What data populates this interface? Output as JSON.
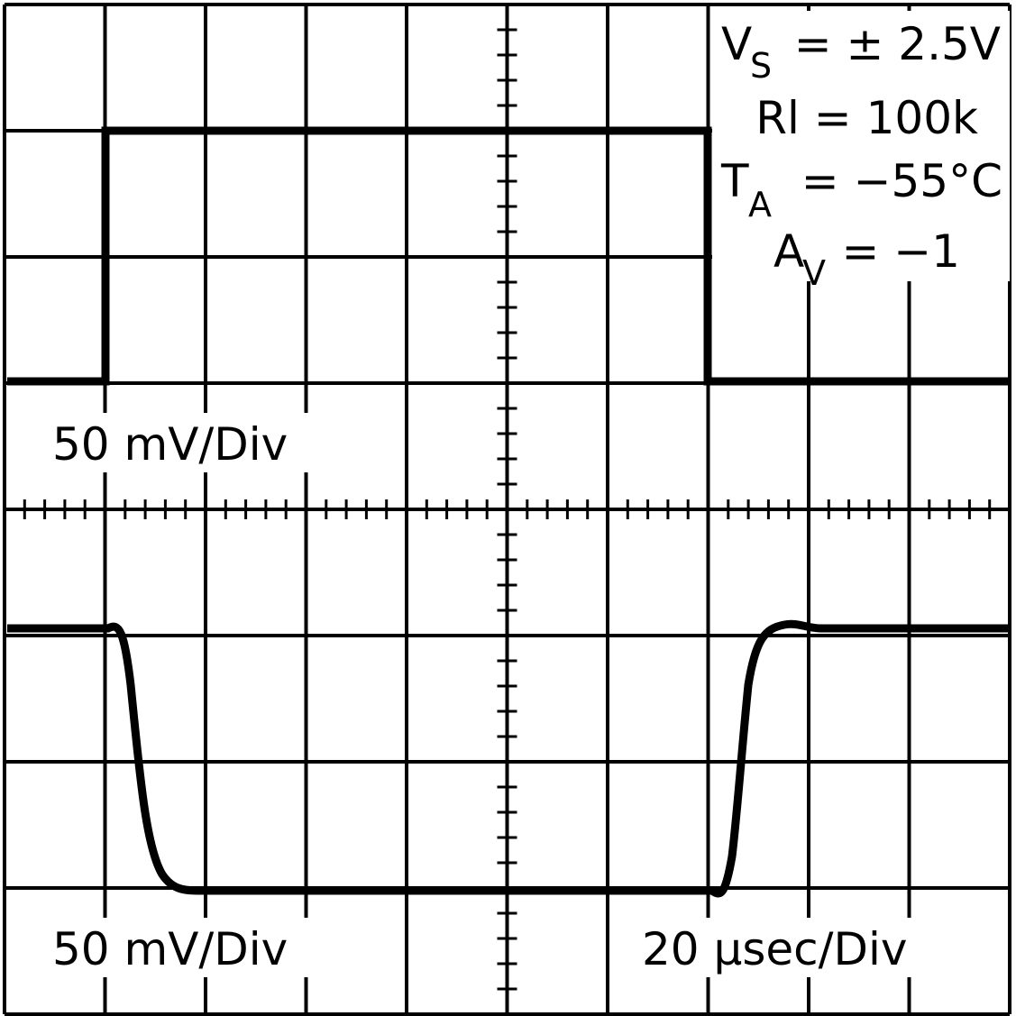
{
  "annotations": {
    "supply": {
      "symbol": "V",
      "subscript": "S",
      "text": "= ± 2.5V"
    },
    "load": {
      "text": "Rl = 100k"
    },
    "temperature": {
      "symbol": "T",
      "subscript": "A",
      "text": "= −55°C"
    },
    "gain": {
      "symbol": "A",
      "subscript": "V",
      "text": "= −1"
    }
  },
  "labels": {
    "top_scale": "50 mV/Div",
    "bottom_scale": "50 mV/Div",
    "time_scale": "20 μsec/Div"
  }
}
